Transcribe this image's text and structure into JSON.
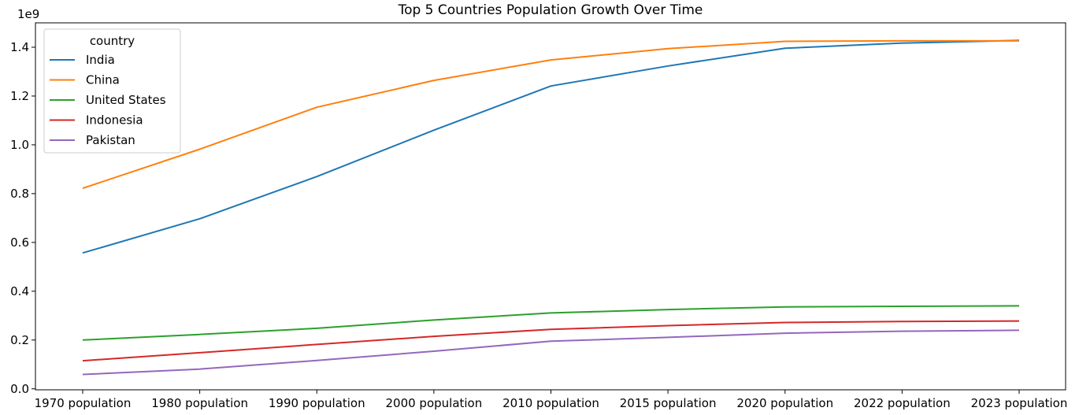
{
  "chart_data": {
    "type": "line",
    "title": "Top 5 Countries Population Growth Over Time",
    "offset_label": "1e9",
    "xlabel": "",
    "ylabel": "",
    "categories": [
      "1970 population",
      "1980 population",
      "1990 population",
      "2000 population",
      "2010 population",
      "2015 population",
      "2020 population",
      "2022 population",
      "2023 population"
    ],
    "yticks": [
      0.0,
      0.2,
      0.4,
      0.6,
      0.8,
      1.0,
      1.2,
      1.4
    ],
    "ytick_labels": [
      "0.0",
      "0.2",
      "0.4",
      "0.6",
      "0.8",
      "1.0",
      "1.2",
      "1.4"
    ],
    "ylim": [
      -0.004,
      1.5
    ],
    "grid": false,
    "legend": {
      "title": "country",
      "position": "top-left"
    },
    "series": [
      {
        "name": "India",
        "color": "#1f77b4",
        "values": [
          0.557,
          0.697,
          0.87,
          1.06,
          1.241,
          1.323,
          1.396,
          1.417,
          1.428
        ]
      },
      {
        "name": "China",
        "color": "#ff7f0e",
        "values": [
          0.822,
          0.982,
          1.154,
          1.264,
          1.348,
          1.394,
          1.424,
          1.426,
          1.426
        ]
      },
      {
        "name": "United States",
        "color": "#2ca02c",
        "values": [
          0.2,
          0.223,
          0.248,
          0.282,
          0.311,
          0.325,
          0.336,
          0.338,
          0.34
        ]
      },
      {
        "name": "Indonesia",
        "color": "#d62728",
        "values": [
          0.115,
          0.148,
          0.182,
          0.215,
          0.244,
          0.259,
          0.272,
          0.276,
          0.278
        ]
      },
      {
        "name": "Pakistan",
        "color": "#9467bd",
        "values": [
          0.059,
          0.081,
          0.116,
          0.154,
          0.195,
          0.211,
          0.228,
          0.236,
          0.24
        ]
      }
    ]
  }
}
